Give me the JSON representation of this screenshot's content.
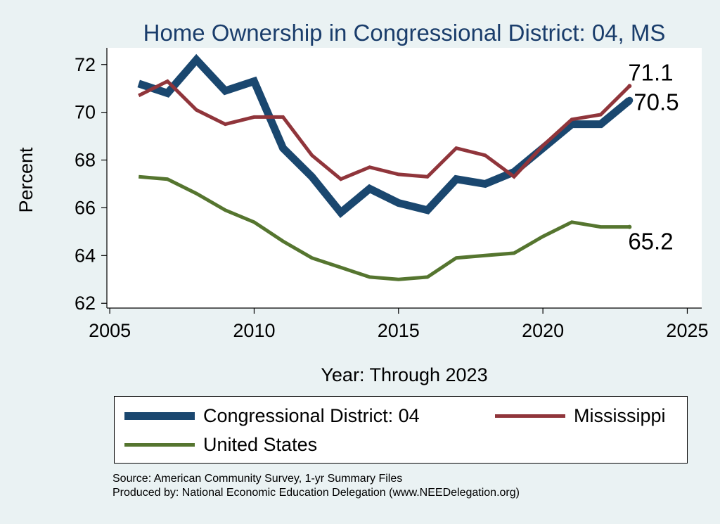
{
  "chart_data": {
    "type": "line",
    "title": "Home Ownership in Congressional District:  04, MS",
    "xlabel": "Year: Through 2023",
    "ylabel": "Percent",
    "xlim": [
      2004.9,
      2025.5
    ],
    "ylim": [
      61.8,
      72.7
    ],
    "xticks": [
      2005,
      2010,
      2015,
      2020,
      2025
    ],
    "yticks": [
      62,
      64,
      66,
      68,
      70,
      72
    ],
    "grid": false,
    "x": [
      2006,
      2007,
      2008,
      2009,
      2010,
      2011,
      2012,
      2013,
      2014,
      2015,
      2016,
      2017,
      2018,
      2019,
      2020,
      2021,
      2022,
      2023
    ],
    "series": [
      {
        "name": "Congressional District:  04",
        "color": "#1a476f",
        "values": [
          71.2,
          70.8,
          72.2,
          70.9,
          71.3,
          68.5,
          67.3,
          65.8,
          66.8,
          66.2,
          65.9,
          67.2,
          67.0,
          67.5,
          68.5,
          69.5,
          69.5,
          70.5
        ],
        "end_label": "70.5"
      },
      {
        "name": "Mississippi",
        "color": "#90353b",
        "values": [
          70.7,
          71.3,
          70.1,
          69.5,
          69.8,
          69.8,
          68.2,
          67.2,
          67.7,
          67.4,
          67.3,
          68.5,
          68.2,
          67.3,
          68.6,
          69.7,
          69.9,
          71.1
        ],
        "end_label": "71.1"
      },
      {
        "name": "United States",
        "color": "#55752f",
        "values": [
          67.3,
          67.2,
          66.6,
          65.9,
          65.4,
          64.6,
          63.9,
          63.5,
          63.1,
          63.0,
          63.1,
          63.9,
          64.0,
          64.1,
          64.8,
          65.4,
          65.2,
          65.2
        ],
        "end_label": "65.2"
      }
    ],
    "legend_position": "bottom"
  },
  "source_line": "Source: American Community Survey, 1-yr Summary Files",
  "produced_line": "Produced by: National Economic Education Delegation (www.NEEDelegation.org)"
}
